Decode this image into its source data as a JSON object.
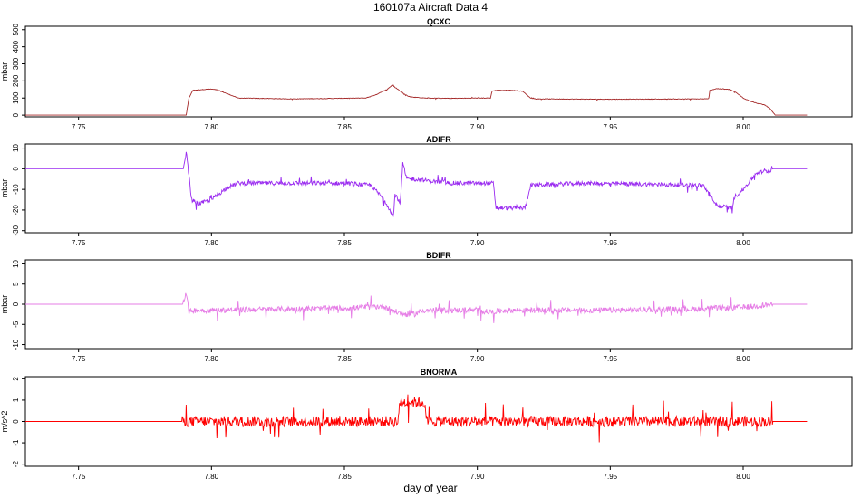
{
  "title": "160107a   Aircraft Data 4",
  "xlabel": "day of year",
  "chart_data": [
    {
      "type": "line",
      "title": "QCXC",
      "ylabel": "mbar",
      "color": "#a52a2a",
      "xlim": [
        7.73,
        8.045
      ],
      "ylim": [
        -10,
        520
      ],
      "xticks": [
        "7.75",
        "7.80",
        "7.85",
        "7.90",
        "7.95",
        "8.00"
      ],
      "yticks": [
        "0",
        "100",
        "200",
        "300",
        "400",
        "500"
      ],
      "noise": 1.5,
      "series": [
        {
          "x": [
            7.73,
            7.7905,
            7.7915,
            7.793,
            7.797,
            7.8,
            7.802,
            7.806,
            7.81,
            7.83,
            7.858,
            7.862,
            7.866,
            7.868,
            7.871,
            7.874,
            7.876,
            7.88,
            7.89,
            7.9,
            7.905,
            7.9055,
            7.907,
            7.913,
            7.917,
            7.92,
            7.922,
            7.95,
            7.987,
            7.9875,
            7.99,
            7.995,
            7.9975,
            8.0,
            8.003,
            8.005,
            8.008,
            8.01,
            8.012,
            8.024
          ],
          "y": [
            0,
            0,
            100,
            145,
            150,
            152,
            148,
            125,
            100,
            95,
            100,
            120,
            150,
            175,
            140,
            110,
            105,
            100,
            98,
            100,
            100,
            140,
            145,
            145,
            140,
            100,
            95,
            93,
            95,
            145,
            155,
            150,
            130,
            100,
            80,
            70,
            60,
            40,
            0,
            0
          ]
        }
      ]
    },
    {
      "type": "line",
      "title": "ADIFR",
      "ylabel": "mbar",
      "color": "#9a2bf0",
      "xlim": [
        7.73,
        8.045
      ],
      "ylim": [
        -31,
        12
      ],
      "xticks": [
        "7.75",
        "7.80",
        "7.85",
        "7.90",
        "7.95",
        "8.00"
      ],
      "yticks": [
        "-30",
        "-20",
        "-10",
        "0",
        "10"
      ],
      "noise": 1.0,
      "series": [
        {
          "x": [
            7.73,
            7.7895,
            7.7905,
            7.7915,
            7.7925,
            7.795,
            7.8,
            7.803,
            7.806,
            7.81,
            7.85,
            7.86,
            7.865,
            7.8685,
            7.869,
            7.871,
            7.872,
            7.873,
            7.8735,
            7.876,
            7.89,
            7.906,
            7.907,
            7.918,
            7.92,
            7.94,
            7.985,
            7.99,
            7.996,
            7.9965,
            8.0,
            8.005,
            8.01,
            8.011,
            8.024
          ],
          "y": [
            0,
            0,
            8,
            -3,
            -15,
            -17,
            -15,
            -12,
            -9,
            -7,
            -7,
            -8,
            -15,
            -23,
            -12,
            -17,
            3,
            -3,
            -5,
            -5,
            -7,
            -7,
            -19,
            -19,
            -8,
            -7,
            -8,
            -18,
            -19,
            -14,
            -10,
            -2,
            -1,
            0,
            0
          ]
        }
      ]
    },
    {
      "type": "line",
      "title": "BDIFR",
      "ylabel": "mbar",
      "color": "#e67ee6",
      "xlim": [
        7.73,
        8.045
      ],
      "ylim": [
        -11,
        11
      ],
      "xticks": [
        "7.75",
        "7.80",
        "7.85",
        "7.90",
        "7.95",
        "8.00"
      ],
      "yticks": [
        "-10",
        "-5",
        "0",
        "5",
        "10"
      ],
      "noise": 0.7,
      "series": [
        {
          "x": [
            7.73,
            7.789,
            7.7905,
            7.7915,
            7.793,
            7.8,
            7.85,
            7.865,
            7.868,
            7.872,
            7.876,
            7.88,
            7.9,
            7.905,
            7.91,
            7.92,
            7.95,
            7.98,
            8.0,
            8.011,
            8.024
          ],
          "y": [
            0,
            0,
            3,
            -2,
            -1.5,
            -1.5,
            -1,
            -0.5,
            -1.5,
            -2.5,
            -2.5,
            -1.5,
            -1.5,
            -2,
            -1.5,
            -1.5,
            -1.5,
            -1.2,
            -0.8,
            0,
            0
          ]
        }
      ]
    },
    {
      "type": "line",
      "title": "BNORMA",
      "ylabel": "m/s^2",
      "color": "#ff0000",
      "xlim": [
        7.73,
        8.045
      ],
      "ylim": [
        -2.1,
        2.1
      ],
      "xticks": [
        "7.75",
        "7.80",
        "7.85",
        "7.90",
        "7.95",
        "8.00"
      ],
      "yticks": [
        "-2",
        "-1",
        "0",
        "1",
        "2"
      ],
      "noise": 0.25,
      "series": [
        {
          "x": [
            7.73,
            7.789,
            7.79,
            7.81,
            7.87,
            7.871,
            7.88,
            7.881,
            7.95,
            8.011,
            8.024
          ],
          "y": [
            0,
            0,
            0,
            0,
            0,
            0.9,
            0.9,
            0,
            0,
            0,
            0
          ]
        }
      ]
    }
  ]
}
